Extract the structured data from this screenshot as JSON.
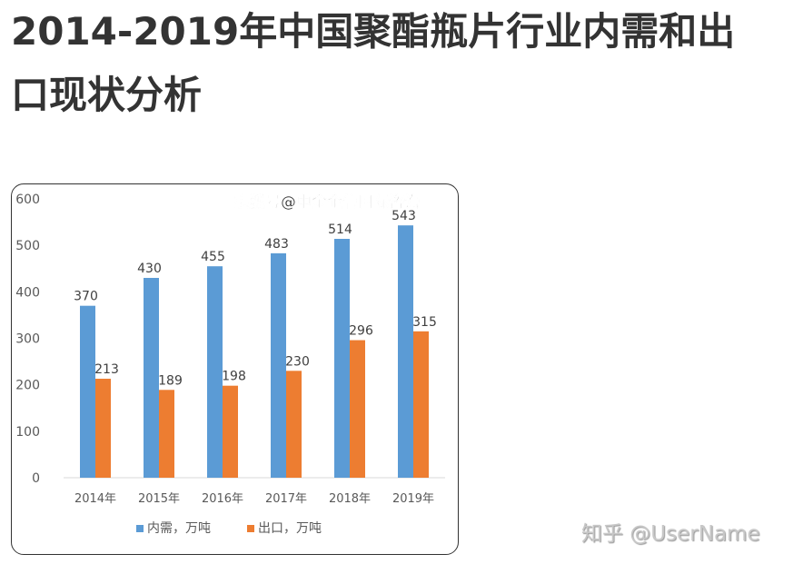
{
  "page": {
    "title": "2014-2019年中国聚酯瓶片行业内需和出口现状分析",
    "title_line1": "2014-2019年中国聚酯瓶片行业内需和出",
    "title_line2": "口现状分析",
    "watermark_sohu": "搜狐号@中金企信国际咨询",
    "watermark_zhihu": "知乎 @UserName"
  },
  "chart_data": {
    "type": "bar",
    "title": "",
    "xlabel": "",
    "ylabel": "",
    "categories": [
      "2014年",
      "2015年",
      "2016年",
      "2017年",
      "2018年",
      "2019年"
    ],
    "series": [
      {
        "name": "内需，万吨",
        "color": "#5B9BD5",
        "values": [
          370,
          430,
          455,
          483,
          514,
          543
        ]
      },
      {
        "name": "出口，万吨",
        "color": "#ED7D31",
        "values": [
          213,
          189,
          198,
          230,
          296,
          315
        ]
      }
    ],
    "ylim": [
      0,
      600
    ],
    "yticks": [
      0,
      100,
      200,
      300,
      400,
      500,
      600
    ],
    "ytick_labels": [
      "0",
      "100",
      "200",
      "300",
      "400",
      "500",
      "600"
    ],
    "grid": false,
    "legend_position": "bottom",
    "data_labels": true
  }
}
